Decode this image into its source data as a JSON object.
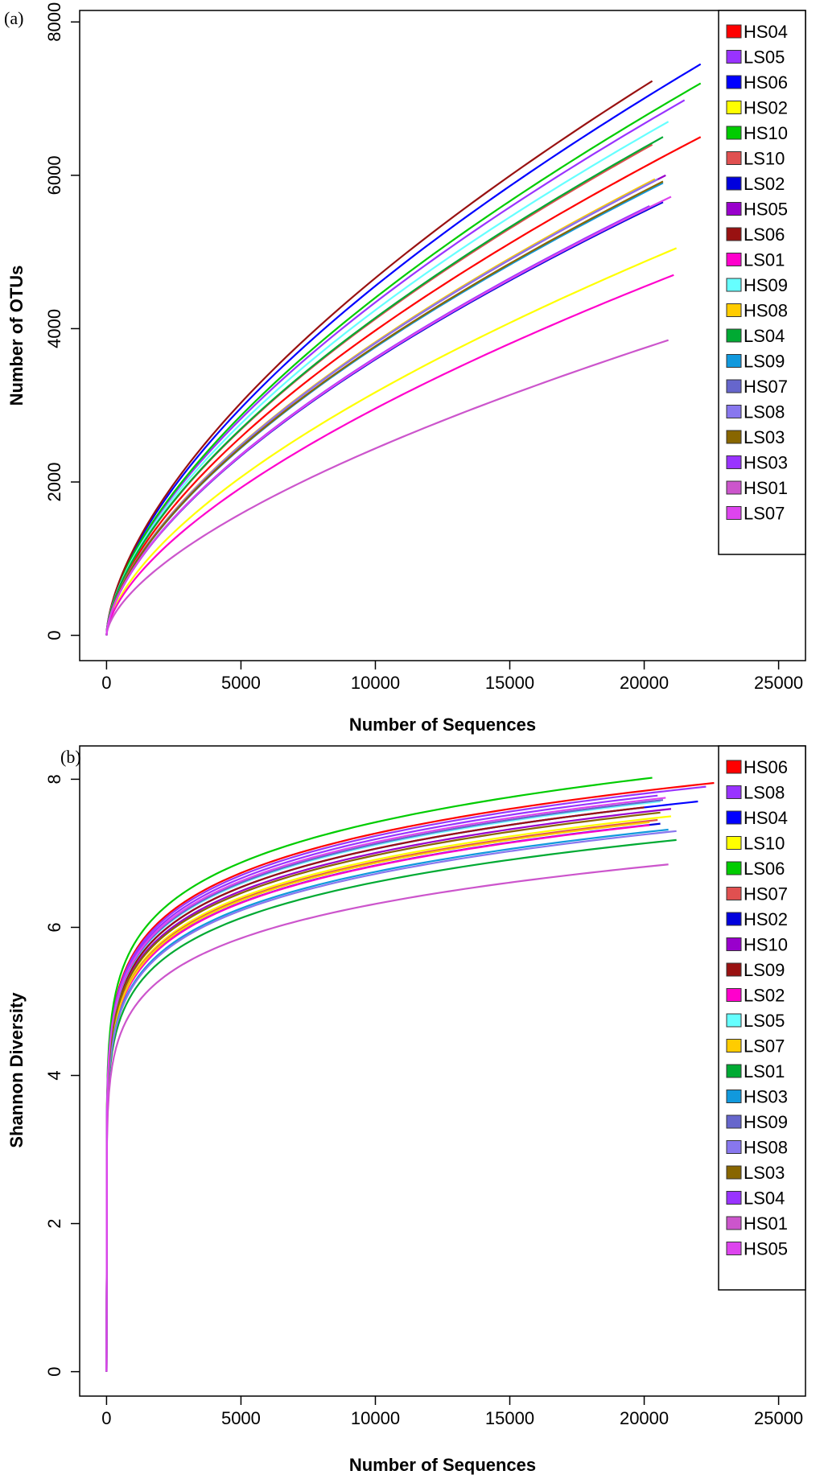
{
  "chart_data": [
    {
      "type": "line",
      "panel_label": "(a)",
      "xlabel": "Number of Sequences",
      "ylabel": "Number of OTUs",
      "xlim": [
        -1000,
        26000
      ],
      "ylim": [
        -330,
        8150
      ],
      "xticks": [
        0,
        5000,
        10000,
        15000,
        20000,
        25000
      ],
      "yticks": [
        0,
        2000,
        4000,
        6000,
        8000
      ],
      "curve_shape": 0.62,
      "legend_position": "top-right",
      "series": [
        {
          "name": "HS04",
          "color": "#ff0000",
          "end_x": 22100,
          "end_y": 6500
        },
        {
          "name": "LS05",
          "color": "#9933ff",
          "end_x": 21500,
          "end_y": 6980
        },
        {
          "name": "HS06",
          "color": "#0000ff",
          "end_x": 22100,
          "end_y": 7450
        },
        {
          "name": "HS02",
          "color": "#ffff00",
          "end_x": 21200,
          "end_y": 5050
        },
        {
          "name": "HS10",
          "color": "#00cc00",
          "end_x": 22100,
          "end_y": 7200
        },
        {
          "name": "LS10",
          "color": "#e05050",
          "end_x": 20300,
          "end_y": 6400
        },
        {
          "name": "LS02",
          "color": "#0000dd",
          "end_x": 20700,
          "end_y": 5650
        },
        {
          "name": "HS05",
          "color": "#9900cc",
          "end_x": 20800,
          "end_y": 6000
        },
        {
          "name": "LS06",
          "color": "#991111",
          "end_x": 20300,
          "end_y": 7230
        },
        {
          "name": "LS01",
          "color": "#ff00cc",
          "end_x": 21100,
          "end_y": 4700
        },
        {
          "name": "HS09",
          "color": "#66ffff",
          "end_x": 20900,
          "end_y": 6700
        },
        {
          "name": "HS08",
          "color": "#ffcc00",
          "end_x": 20400,
          "end_y": 5950
        },
        {
          "name": "LS04",
          "color": "#00aa33",
          "end_x": 20700,
          "end_y": 6500
        },
        {
          "name": "LS09",
          "color": "#1199dd",
          "end_x": 20700,
          "end_y": 5900
        },
        {
          "name": "HS07",
          "color": "#6666cc",
          "end_x": 20600,
          "end_y": 5650
        },
        {
          "name": "LS08",
          "color": "#8877ee",
          "end_x": 20500,
          "end_y": 5950
        },
        {
          "name": "LS03",
          "color": "#886600",
          "end_x": 20700,
          "end_y": 5920
        },
        {
          "name": "HS03",
          "color": "#9933ff",
          "end_x": 20200,
          "end_y": 5600
        },
        {
          "name": "HS01",
          "color": "#cc55cc",
          "end_x": 20900,
          "end_y": 3850
        },
        {
          "name": "LS07",
          "color": "#dd44ee",
          "end_x": 21000,
          "end_y": 5720
        }
      ]
    },
    {
      "type": "line",
      "panel_label": "(b)",
      "xlabel": "Number of Sequences",
      "ylabel": "Shannon Diversity",
      "xlim": [
        -1000,
        26000
      ],
      "ylim": [
        -0.33,
        8.45
      ],
      "xticks": [
        0,
        5000,
        10000,
        15000,
        20000,
        25000
      ],
      "yticks": [
        0,
        2,
        4,
        6,
        8
      ],
      "curve_shape": 0.11,
      "legend_position": "top-right",
      "series": [
        {
          "name": "HS06",
          "color": "#ff0000",
          "end_x": 22600,
          "end_y": 7.95
        },
        {
          "name": "LS08",
          "color": "#9933ff",
          "end_x": 22300,
          "end_y": 7.9
        },
        {
          "name": "HS04",
          "color": "#0000ff",
          "end_x": 22000,
          "end_y": 7.7
        },
        {
          "name": "LS10",
          "color": "#ffff00",
          "end_x": 21000,
          "end_y": 7.5
        },
        {
          "name": "LS06",
          "color": "#00cc00",
          "end_x": 20300,
          "end_y": 8.02
        },
        {
          "name": "HS07",
          "color": "#e05050",
          "end_x": 20500,
          "end_y": 7.45
        },
        {
          "name": "HS02",
          "color": "#0000dd",
          "end_x": 20600,
          "end_y": 7.4
        },
        {
          "name": "HS10",
          "color": "#9900cc",
          "end_x": 21000,
          "end_y": 7.6
        },
        {
          "name": "LS09",
          "color": "#991111",
          "end_x": 20000,
          "end_y": 7.62
        },
        {
          "name": "LS02",
          "color": "#ff00cc",
          "end_x": 20200,
          "end_y": 7.38
        },
        {
          "name": "LS05",
          "color": "#66ffff",
          "end_x": 20600,
          "end_y": 7.7
        },
        {
          "name": "LS07",
          "color": "#ffcc00",
          "end_x": 20200,
          "end_y": 7.42
        },
        {
          "name": "LS01",
          "color": "#00aa33",
          "end_x": 21200,
          "end_y": 7.18
        },
        {
          "name": "HS03",
          "color": "#1199dd",
          "end_x": 20900,
          "end_y": 7.32
        },
        {
          "name": "HS09",
          "color": "#6666cc",
          "end_x": 20700,
          "end_y": 7.72
        },
        {
          "name": "HS08",
          "color": "#8877ee",
          "end_x": 21200,
          "end_y": 7.3
        },
        {
          "name": "LS03",
          "color": "#886600",
          "end_x": 20600,
          "end_y": 7.55
        },
        {
          "name": "LS04",
          "color": "#9933ff",
          "end_x": 20500,
          "end_y": 7.78
        },
        {
          "name": "HS01",
          "color": "#cc55cc",
          "end_x": 20900,
          "end_y": 6.85
        },
        {
          "name": "HS05",
          "color": "#dd44ee",
          "end_x": 20800,
          "end_y": 7.75
        }
      ]
    }
  ]
}
